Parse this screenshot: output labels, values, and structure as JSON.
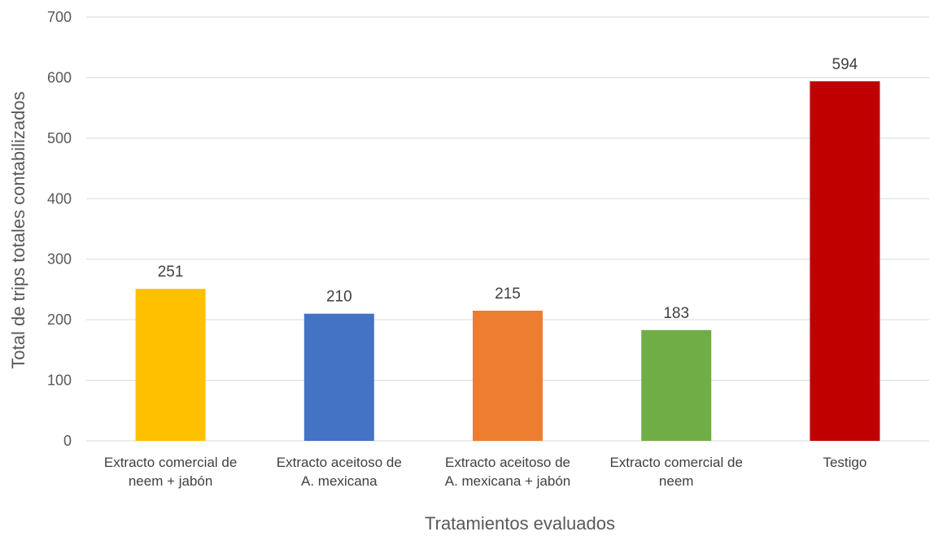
{
  "chart_data": {
    "type": "bar",
    "title": "",
    "xlabel": "Tratamientos evaluados",
    "ylabel": "Total de trips totales contabilizados",
    "ylim": [
      0,
      700
    ],
    "yticks": [
      0,
      100,
      200,
      300,
      400,
      500,
      600,
      700
    ],
    "ytick_labels": [
      "0",
      "100",
      "200",
      "300",
      "400",
      "500",
      "600",
      "700"
    ],
    "grid": true,
    "legend": "none",
    "categories": [
      [
        "Extracto comercial de",
        "neem + jabón"
      ],
      [
        "Extracto aceitoso de",
        "A. mexicana"
      ],
      [
        "Extracto aceitoso de",
        "A. mexicana + jabón"
      ],
      [
        "Extracto comercial de",
        "neem"
      ],
      [
        "Testigo"
      ]
    ],
    "values": [
      251,
      210,
      215,
      183,
      594
    ],
    "data_labels": [
      "251",
      "210",
      "215",
      "183",
      "594"
    ],
    "colors": [
      "#FFC000",
      "#4472C4",
      "#ED7D31",
      "#70AD47",
      "#C00000"
    ]
  }
}
